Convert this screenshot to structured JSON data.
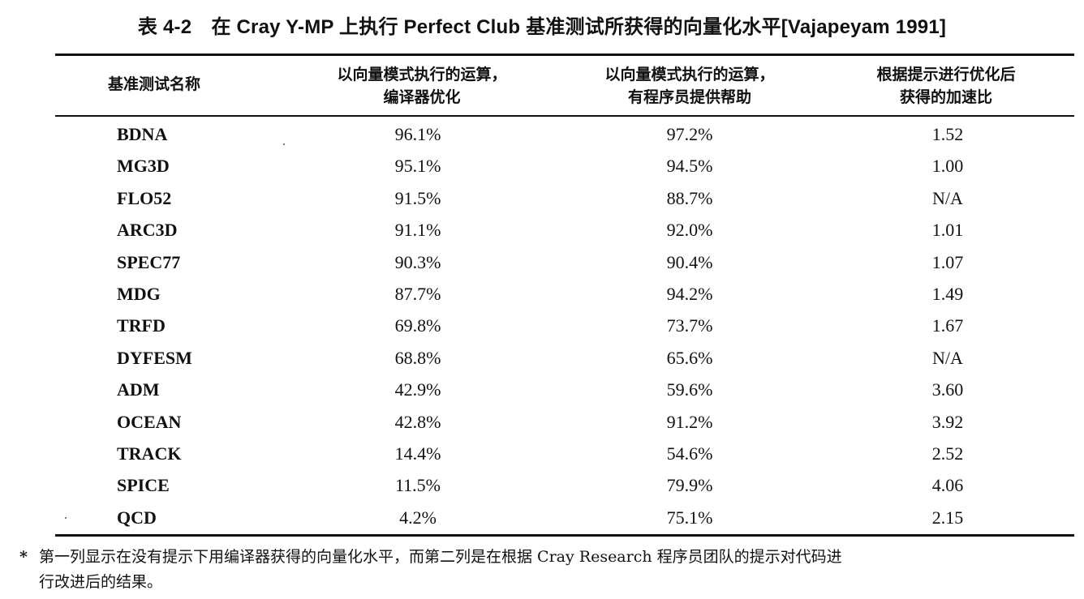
{
  "caption": "表 4-2　在 Cray Y-MP 上执行 Perfect Club 基准测试所获得的向量化水平[Vajapeyam 1991]",
  "table": {
    "headers": [
      {
        "line1": "基准测试名称",
        "line2": ""
      },
      {
        "line1": "以向量模式执行的运算，",
        "line2": "编译器优化"
      },
      {
        "line1": "以向量模式执行的运算，",
        "line2": "有程序员提供帮助"
      },
      {
        "line1": "根据提示进行优化后",
        "line2": "获得的加速比"
      }
    ],
    "rows": [
      {
        "name": "BDNA",
        "compiler": "96.1%",
        "programmer": "97.2%",
        "speedup": "1.52"
      },
      {
        "name": "MG3D",
        "compiler": "95.1%",
        "programmer": "94.5%",
        "speedup": "1.00"
      },
      {
        "name": "FLO52",
        "compiler": "91.5%",
        "programmer": "88.7%",
        "speedup": "N/A"
      },
      {
        "name": "ARC3D",
        "compiler": "91.1%",
        "programmer": "92.0%",
        "speedup": "1.01"
      },
      {
        "name": "SPEC77",
        "compiler": "90.3%",
        "programmer": "90.4%",
        "speedup": "1.07"
      },
      {
        "name": "MDG",
        "compiler": "87.7%",
        "programmer": "94.2%",
        "speedup": "1.49"
      },
      {
        "name": "TRFD",
        "compiler": "69.8%",
        "programmer": "73.7%",
        "speedup": "1.67"
      },
      {
        "name": "DYFESM",
        "compiler": "68.8%",
        "programmer": "65.6%",
        "speedup": "N/A"
      },
      {
        "name": "ADM",
        "compiler": "42.9%",
        "programmer": "59.6%",
        "speedup": "3.60"
      },
      {
        "name": "OCEAN",
        "compiler": "42.8%",
        "programmer": "91.2%",
        "speedup": "3.92"
      },
      {
        "name": "TRACK",
        "compiler": "14.4%",
        "programmer": "54.6%",
        "speedup": "2.52"
      },
      {
        "name": "SPICE",
        "compiler": "11.5%",
        "programmer": "79.9%",
        "speedup": "4.06"
      },
      {
        "name": "QCD",
        "compiler": "4.2%",
        "programmer": "75.1%",
        "speedup": "2.15"
      }
    ]
  },
  "footnote": {
    "mark": "*",
    "line1": "第一列显示在没有提示下用编译器获得的向量化水平，而第二列是在根据 Cray Research 程序员团队的提示对代码进",
    "line2": "行改进后的结果。"
  }
}
